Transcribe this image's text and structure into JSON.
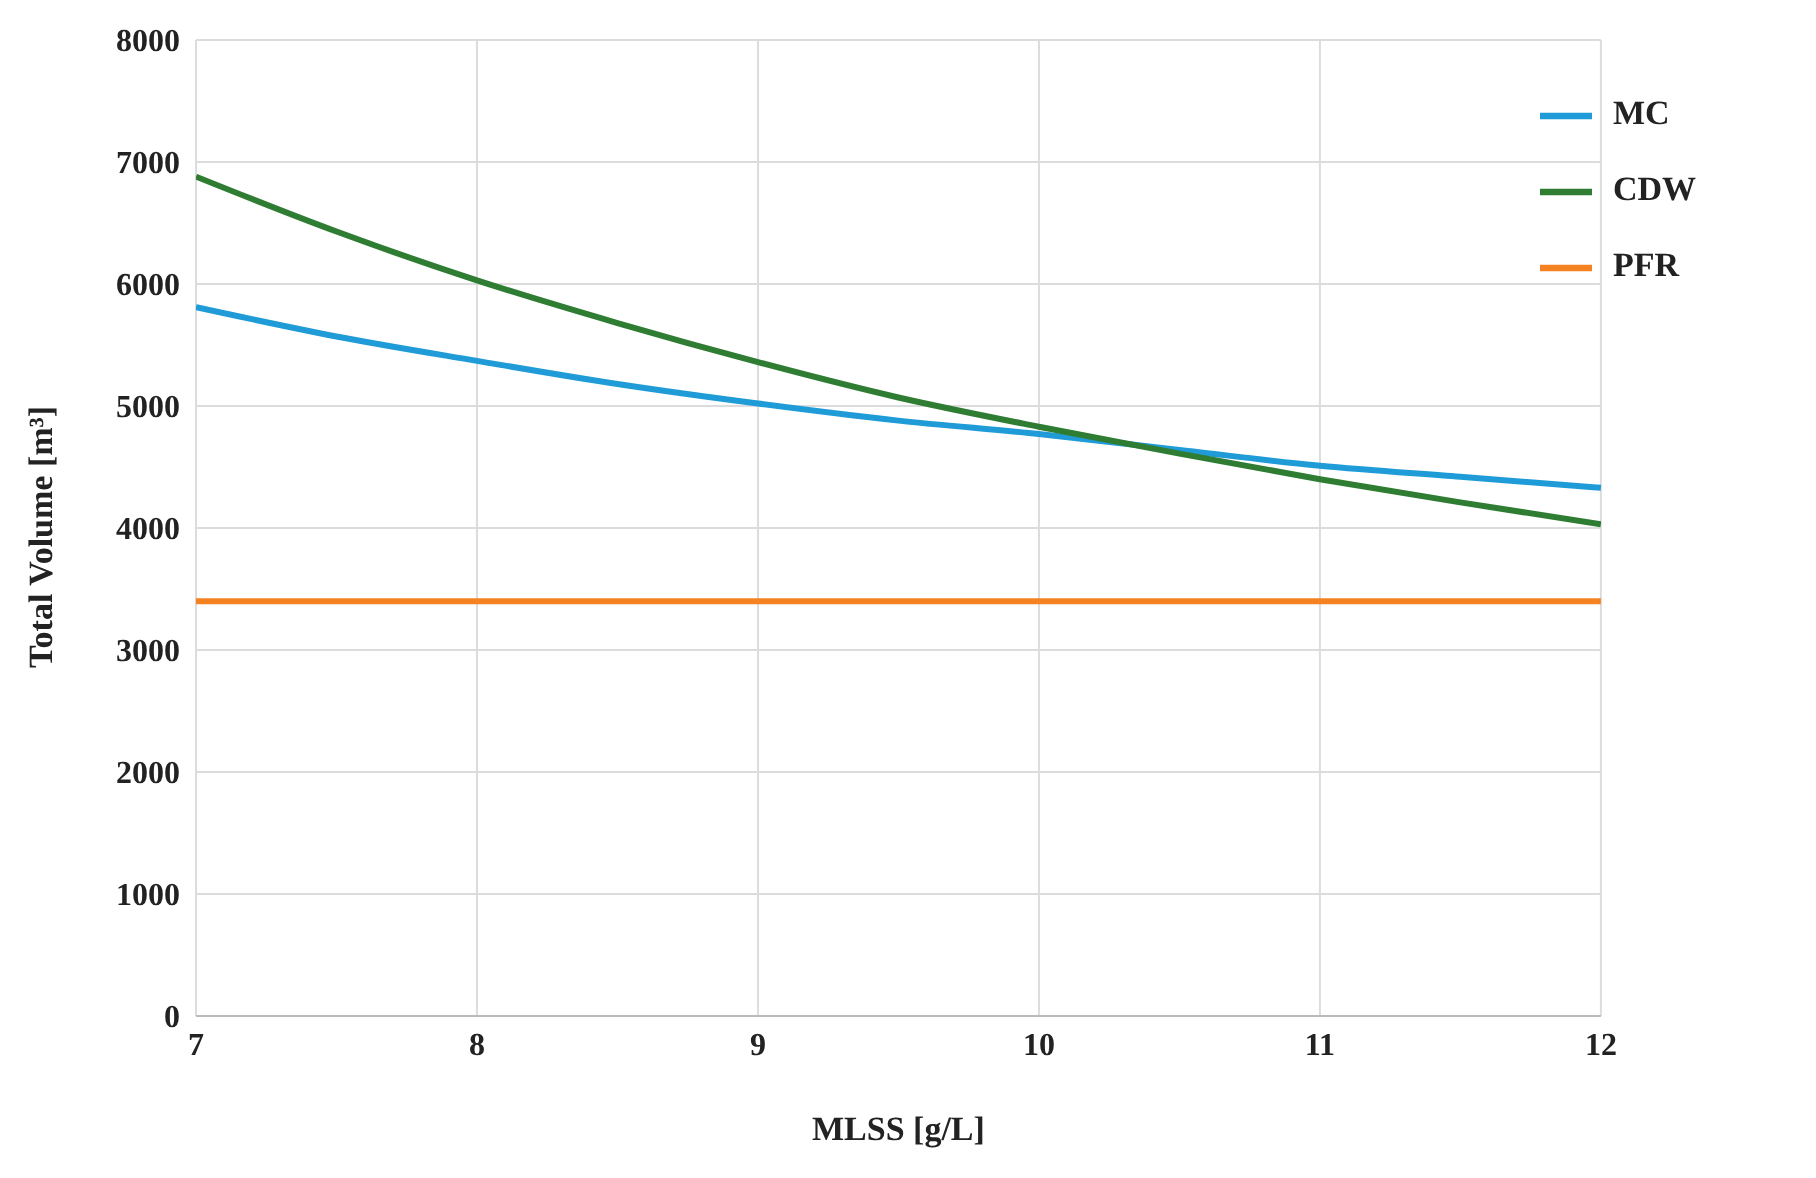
{
  "chart_data": {
    "type": "line",
    "xlabel": "MLSS [g/L]",
    "ylabel": "Total Volume [m³]",
    "x": [
      7,
      7.5,
      8,
      8.5,
      9,
      9.5,
      10,
      10.5,
      11,
      11.5,
      12
    ],
    "series": [
      {
        "name": "MC",
        "color": "#1f9bd7",
        "values": [
          5810,
          5570,
          5370,
          5180,
          5020,
          4880,
          4770,
          4640,
          4510,
          4420,
          4330
        ]
      },
      {
        "name": "CDW",
        "color": "#2e7d32",
        "values": [
          6880,
          6430,
          6030,
          5680,
          5360,
          5070,
          4830,
          4610,
          4400,
          4210,
          4030
        ]
      },
      {
        "name": "PFR",
        "color": "#f58220",
        "values": [
          3400,
          3400,
          3400,
          3400,
          3400,
          3400,
          3400,
          3400,
          3400,
          3400,
          3400
        ]
      }
    ],
    "xlim": [
      7,
      12
    ],
    "xticks": [
      7,
      8,
      9,
      10,
      11,
      12
    ],
    "ylim": [
      0,
      8000
    ],
    "yticks": [
      0,
      1000,
      2000,
      3000,
      4000,
      5000,
      6000,
      7000,
      8000
    ],
    "grid": true,
    "legend": "top right",
    "marker": "none",
    "line_style": "solid"
  }
}
